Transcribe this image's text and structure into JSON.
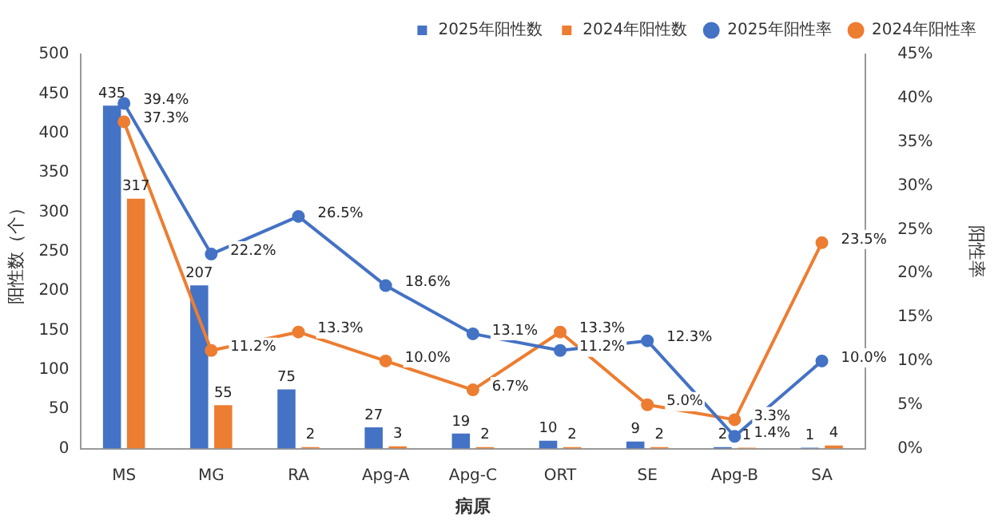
{
  "chart_data": {
    "type": "bar",
    "xlabel": "病原",
    "ylabel": "阳性数（个）",
    "y2label": "阳性率",
    "categories": [
      "MS",
      "MG",
      "RA",
      "Apg-A",
      "Apg-C",
      "ORT",
      "SE",
      "Apg-B",
      "SA"
    ],
    "series": [
      {
        "name": "2025年阳性数",
        "color": "#4472c4",
        "values": [
          435,
          207,
          75,
          27,
          19,
          10,
          9,
          2,
          1
        ],
        "value_labels": [
          "435",
          "207",
          "75",
          "27",
          "19",
          "10",
          "9",
          "2",
          "1"
        ]
      },
      {
        "name": "2024年阳性数",
        "color": "#ed7d31",
        "values": [
          317,
          55,
          2,
          3,
          2,
          2,
          2,
          1,
          4
        ],
        "value_labels": [
          "317",
          "55",
          "2",
          "3",
          "2",
          "2",
          "2",
          "1",
          "4"
        ]
      },
      {
        "name": "2025年阳性率",
        "type": "line",
        "axis": "y2",
        "color": "#4472c4",
        "values": [
          39.4,
          22.2,
          26.5,
          18.6,
          13.1,
          11.2,
          12.3,
          1.4,
          10.0
        ],
        "value_labels": [
          "39.4%",
          "22.2%",
          "26.5%",
          "18.6%",
          "13.1%",
          "11.2%",
          "12.3%",
          "1.4%",
          "10.0%"
        ]
      },
      {
        "name": "2024年阳性率",
        "type": "line",
        "axis": "y2",
        "color": "#ed7d31",
        "values": [
          37.3,
          11.2,
          13.3,
          10.0,
          6.7,
          13.3,
          5.0,
          3.3,
          23.5
        ],
        "value_labels": [
          "37.3%",
          "11.2%",
          "13.3%",
          "10.0%",
          "6.7%",
          "13.3%",
          "5.0%",
          "3.3%",
          "23.5%"
        ]
      }
    ],
    "ylim": [
      0,
      500
    ],
    "yticks": [
      0,
      50,
      100,
      150,
      200,
      250,
      300,
      350,
      400,
      450,
      500
    ],
    "y2lim": [
      0,
      45
    ],
    "y2ticks": [
      {
        "value": 0,
        "label": "0%"
      },
      {
        "value": 5,
        "label": "5%"
      },
      {
        "value": 10,
        "label": "10%"
      },
      {
        "value": 15,
        "label": "15%"
      },
      {
        "value": 20,
        "label": "20%"
      },
      {
        "value": 25,
        "label": "25%"
      },
      {
        "value": 30,
        "label": "30%"
      },
      {
        "value": 35,
        "label": "35%"
      },
      {
        "value": 40,
        "label": "40%"
      },
      {
        "value": 45,
        "label": "45%"
      }
    ],
    "legend": "top right",
    "marker": "circle",
    "line_style": "solid",
    "grid": false
  }
}
